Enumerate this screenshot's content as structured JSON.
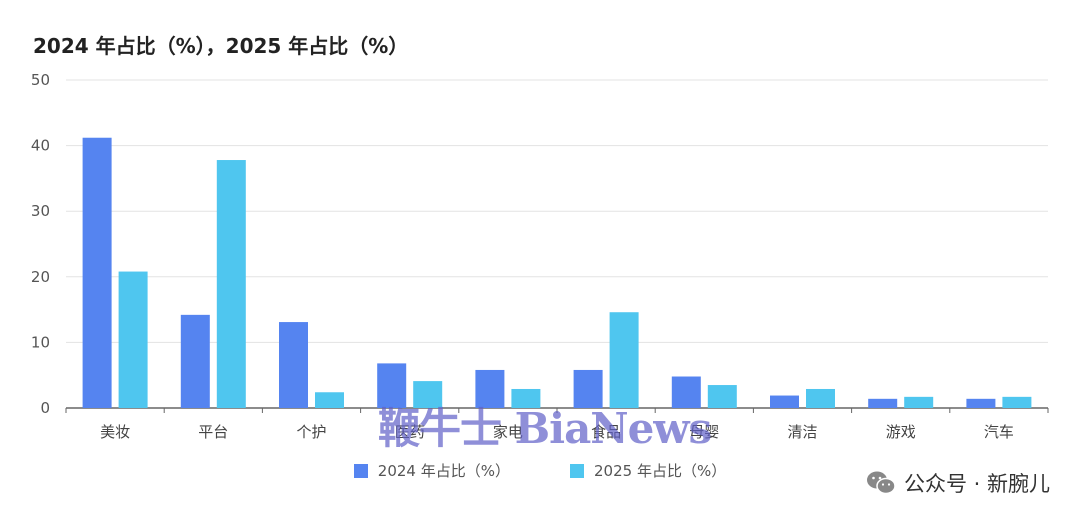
{
  "colors": {
    "series_2024": "#5584f0",
    "series_2025": "#4fc6ef",
    "grid": "#e3e3e3",
    "axis": "#666666"
  },
  "chart_data": {
    "type": "bar",
    "title": "2024 年占比（%），2025 年占比（%）",
    "categories": [
      "美妆",
      "平台",
      "个护",
      "医药",
      "家电",
      "食品",
      "母婴",
      "清洁",
      "游戏",
      "汽车"
    ],
    "series": [
      {
        "name": "2024 年占比（%）",
        "values": [
          41.2,
          14.2,
          13.1,
          6.8,
          5.8,
          5.8,
          4.8,
          1.9,
          1.4,
          1.4
        ]
      },
      {
        "name": "2025 年占比（%）",
        "values": [
          20.8,
          37.8,
          2.4,
          4.1,
          2.9,
          14.6,
          3.5,
          2.9,
          1.7,
          1.7
        ]
      }
    ],
    "yticks": [
      0,
      10,
      20,
      30,
      40,
      50
    ],
    "ylim": [
      0,
      50
    ],
    "grid": true,
    "legend": "bottom-center"
  },
  "watermark_text": "鞭牛士 BiaNews",
  "account_label": "公众号 · 新腕儿",
  "account_icon": "wechat-icon"
}
